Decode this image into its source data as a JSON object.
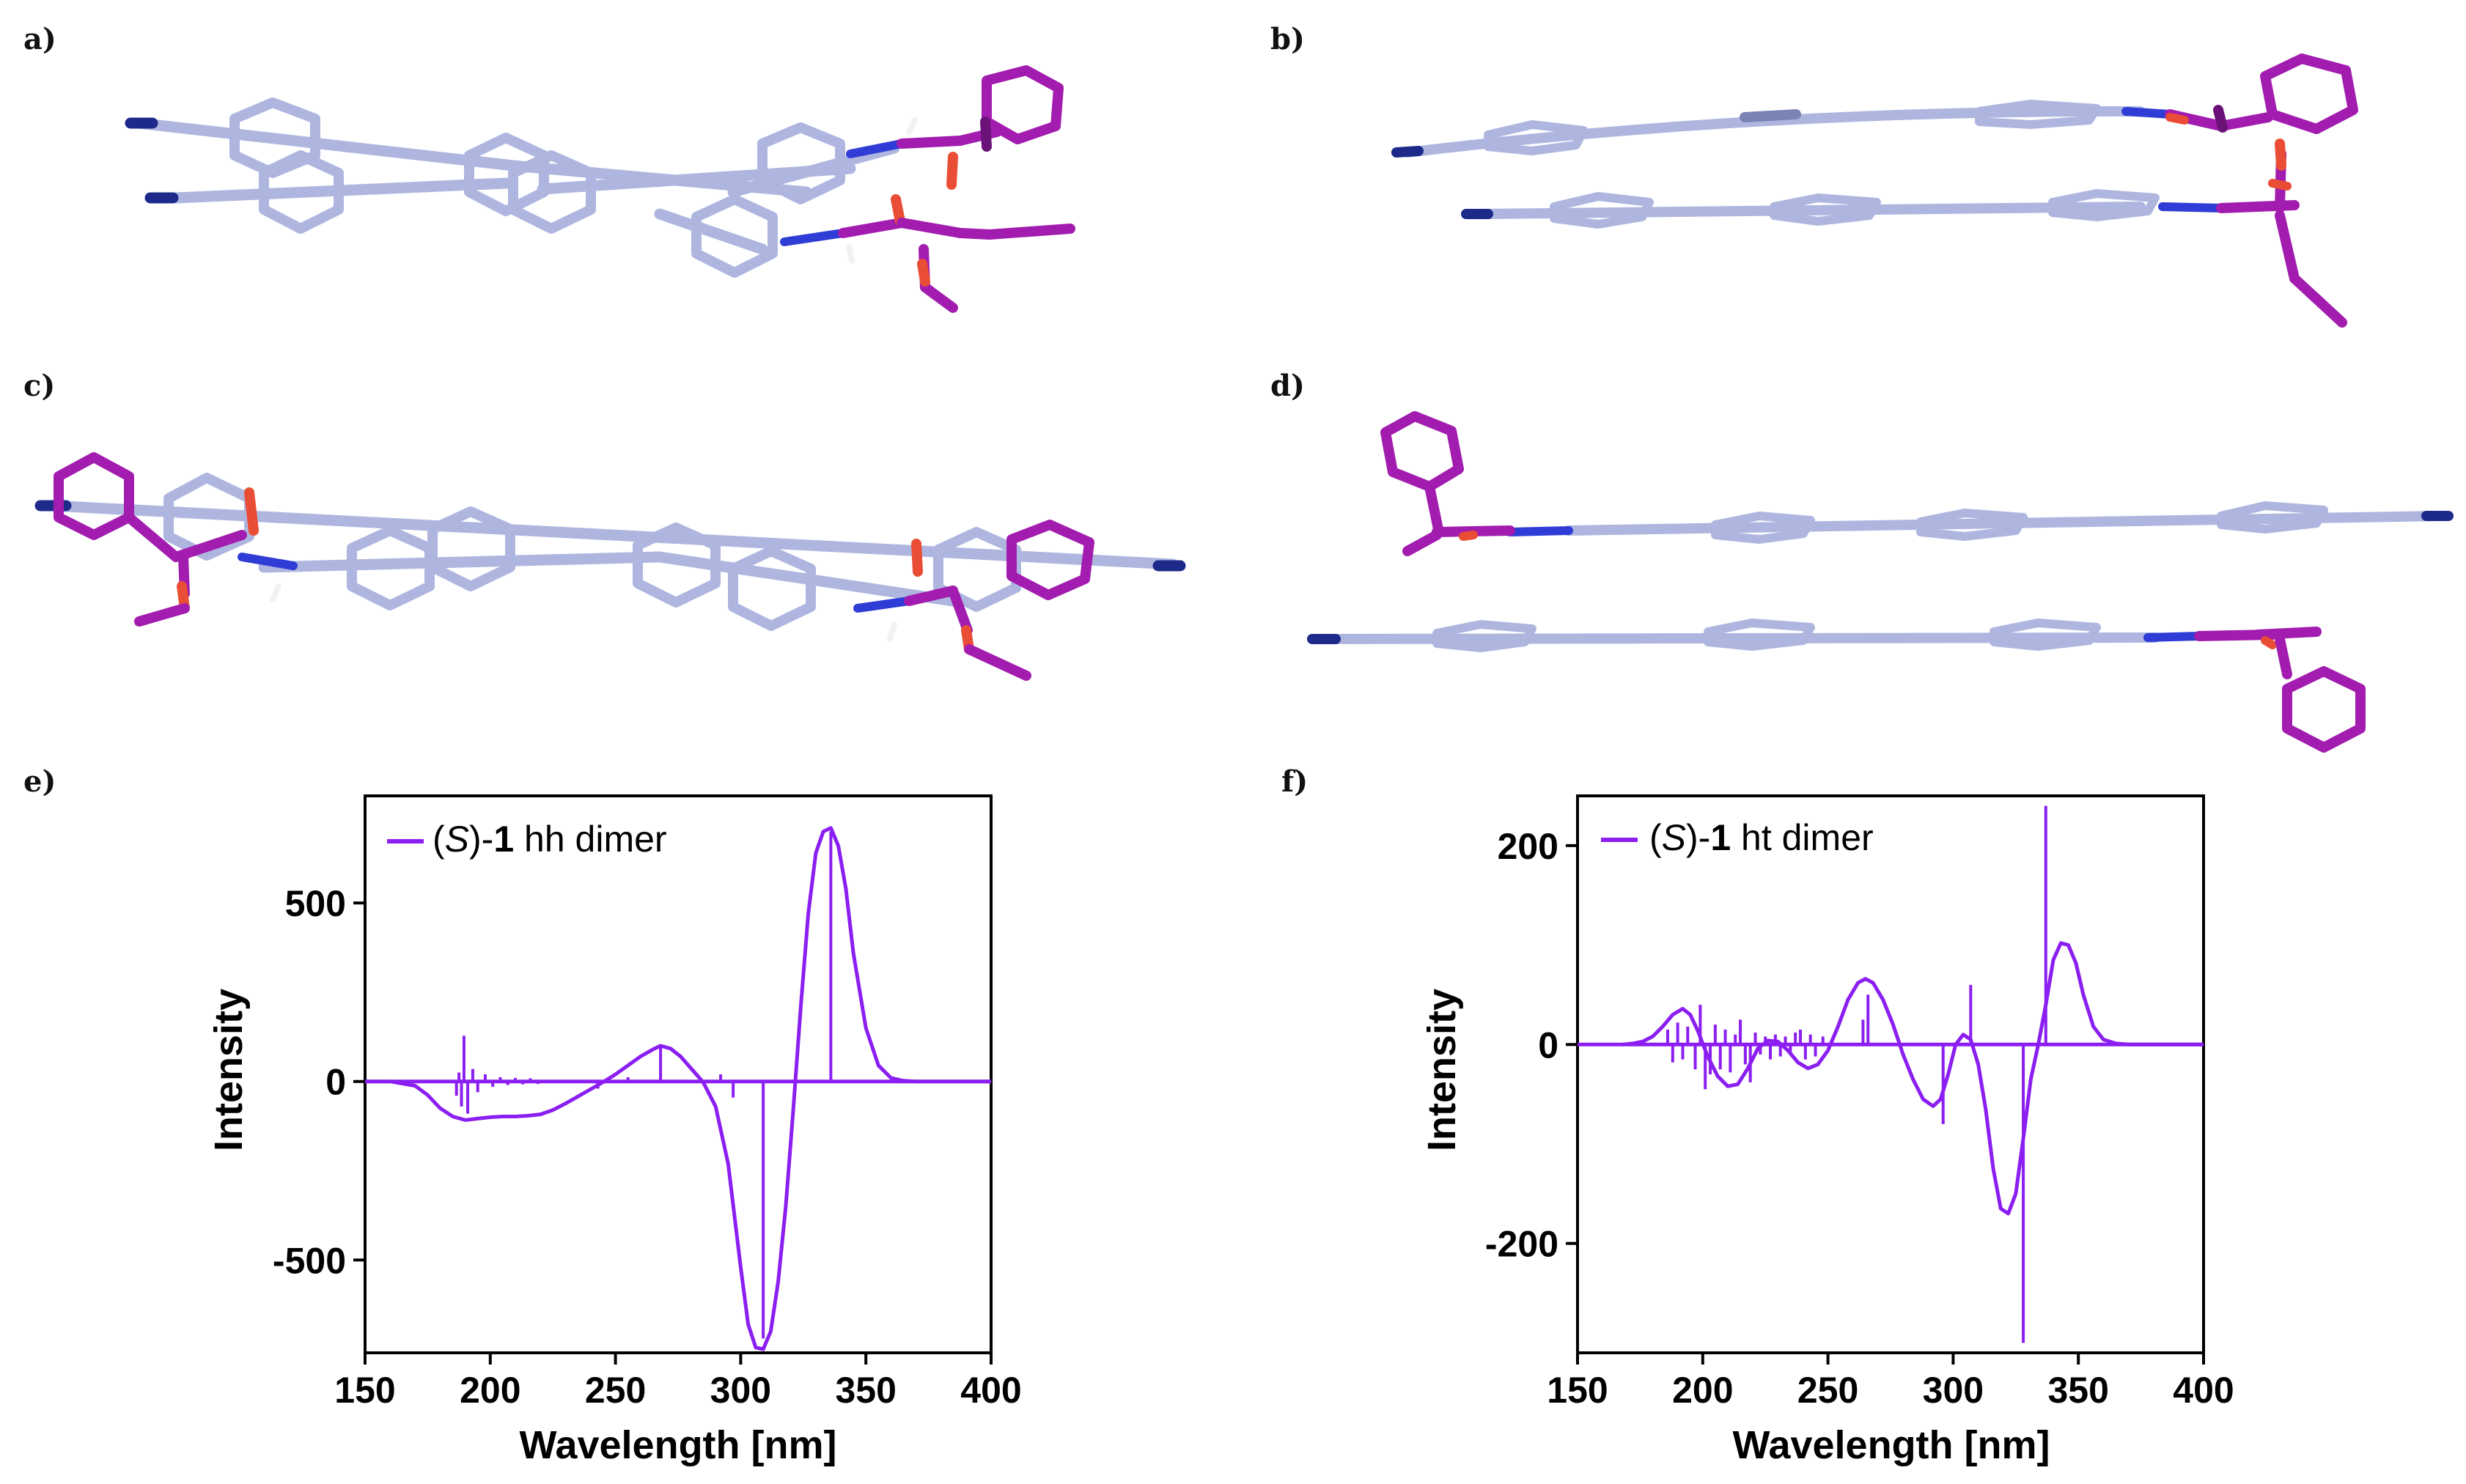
{
  "panel_labels": [
    "a)",
    "b)",
    "c)",
    "d)",
    "e)",
    "f)"
  ],
  "colors": {
    "spectrum": "#8b1ef0",
    "carbon": "#aeb6e0",
    "chiral_group": "#a21caf",
    "nitrogen": "#2f3dd6",
    "oxygen": "#ea4d35"
  },
  "chart_data": [
    {
      "panel": "e)",
      "type": "line",
      "legend": {
        "prefix": "(",
        "italic": "S",
        "middle": ")-",
        "bold": "1",
        "suffix": " hh dimer"
      },
      "xlabel": "Wavelength  [nm]",
      "ylabel": "Intensity",
      "xlim": [
        150,
        400
      ],
      "ylim": [
        -760,
        800
      ],
      "xticks": [
        150,
        200,
        250,
        300,
        350,
        400
      ],
      "yticks": [
        500,
        0,
        -500
      ],
      "ytick_labels": [
        "500",
        "0",
        "-500"
      ],
      "series": [
        {
          "name": "spectrum",
          "x": [
            150,
            160,
            170,
            175,
            180,
            185,
            190,
            195,
            200,
            205,
            210,
            215,
            220,
            225,
            230,
            235,
            240,
            245,
            250,
            255,
            260,
            265,
            268,
            272,
            276,
            280,
            285,
            290,
            295,
            300,
            303,
            306,
            309,
            312,
            315,
            318,
            321,
            324,
            327,
            330,
            333,
            336,
            339,
            342,
            345,
            350,
            355,
            360,
            365,
            370,
            380,
            390,
            400
          ],
          "y": [
            0,
            0,
            -12,
            -38,
            -75,
            -98,
            -108,
            -104,
            -100,
            -98,
            -98,
            -96,
            -92,
            -80,
            -62,
            -42,
            -22,
            -2,
            20,
            45,
            70,
            90,
            100,
            92,
            70,
            38,
            -2,
            -70,
            -230,
            -520,
            -680,
            -745,
            -750,
            -700,
            -560,
            -350,
            -80,
            210,
            470,
            640,
            700,
            710,
            660,
            540,
            360,
            150,
            45,
            10,
            2,
            0,
            0,
            0,
            0
          ]
        },
        {
          "name": "sticks",
          "x": [
            186.5,
            187.5,
            188.5,
            189.5,
            191,
            193,
            195,
            198,
            201,
            204,
            207,
            210,
            213,
            216,
            219,
            243,
            255,
            268,
            292,
            297,
            309,
            336
          ],
          "y": [
            -40,
            25,
            -70,
            128,
            -90,
            35,
            -30,
            20,
            -15,
            12,
            -10,
            10,
            -8,
            9,
            -7,
            -20,
            12,
            100,
            20,
            -45,
            -720,
            700
          ]
        }
      ]
    },
    {
      "panel": "f)",
      "type": "line",
      "legend": {
        "prefix": "(",
        "italic": "S",
        "middle": ")-",
        "bold": "1",
        "suffix": " ht dimer"
      },
      "xlabel": "Wavelength  [nm]",
      "ylabel": "Intensity",
      "xlim": [
        150,
        400
      ],
      "ylim": [
        -310,
        250
      ],
      "xticks": [
        150,
        200,
        250,
        300,
        350,
        400
      ],
      "yticks": [
        200,
        0,
        -200
      ],
      "ytick_labels": [
        "200",
        "0",
        "-200"
      ],
      "series": [
        {
          "name": "spectrum",
          "x": [
            168,
            172,
            176,
            180,
            184,
            188,
            192,
            195,
            198,
            202,
            206,
            210,
            214,
            218,
            222,
            226,
            230,
            234,
            238,
            242,
            246,
            250,
            254,
            258,
            262,
            265,
            268,
            272,
            276,
            280,
            284,
            288,
            292,
            295,
            298,
            301,
            304,
            307,
            310,
            313,
            316,
            319,
            322,
            325,
            328,
            331,
            334,
            337,
            340,
            343,
            346,
            349,
            352,
            356,
            360,
            365,
            370,
            380,
            390,
            400
          ],
          "y": [
            0,
            1,
            3,
            8,
            18,
            30,
            36,
            30,
            14,
            -12,
            -32,
            -42,
            -40,
            -24,
            -4,
            4,
            3,
            -6,
            -18,
            -24,
            -20,
            -6,
            18,
            45,
            62,
            66,
            62,
            45,
            20,
            -10,
            -35,
            -55,
            -62,
            -55,
            -30,
            0,
            10,
            5,
            -20,
            -65,
            -125,
            -165,
            -170,
            -150,
            -95,
            -35,
            0,
            40,
            85,
            102,
            100,
            82,
            50,
            18,
            5,
            1,
            0,
            0,
            0,
            0
          ]
        },
        {
          "name": "sticks",
          "x": [
            186,
            188,
            190,
            192,
            194,
            197,
            199,
            201,
            203,
            205,
            207,
            209,
            211,
            213,
            215,
            217,
            219,
            221,
            223,
            225,
            227,
            229,
            231,
            233,
            235,
            237,
            239,
            241,
            243,
            245,
            248,
            264,
            266,
            296,
            307,
            328,
            337
          ],
          "y": [
            15,
            -18,
            22,
            -15,
            18,
            -25,
            40,
            -45,
            -30,
            20,
            -25,
            15,
            -28,
            10,
            25,
            -20,
            -38,
            12,
            -10,
            8,
            -15,
            10,
            -12,
            8,
            -10,
            12,
            15,
            -15,
            10,
            -12,
            8,
            25,
            50,
            -80,
            60,
            -300,
            240
          ]
        }
      ]
    }
  ]
}
